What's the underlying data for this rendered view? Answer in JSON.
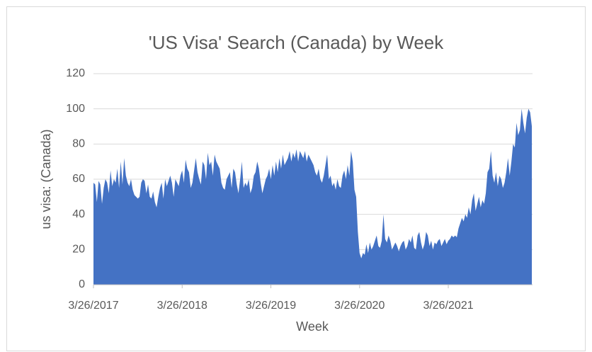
{
  "chart_data": {
    "type": "area",
    "title": "'US Visa' Search (Canada) by Week",
    "x_label": "Week",
    "y_label": "us visa: (Canada)",
    "ylim": [
      0,
      120
    ],
    "yticks": [
      0,
      20,
      40,
      60,
      80,
      100,
      120
    ],
    "grid": true,
    "categories": [
      "3/26/2017",
      null,
      null,
      null,
      null,
      null,
      null,
      null,
      null,
      null,
      null,
      null,
      null,
      null,
      null,
      null,
      null,
      null,
      null,
      null,
      null,
      null,
      null,
      null,
      null,
      null,
      null,
      null,
      null,
      null,
      null,
      null,
      null,
      null,
      null,
      null,
      null,
      null,
      null,
      null,
      null,
      null,
      null,
      null,
      null,
      null,
      null,
      null,
      null,
      null,
      null,
      null,
      "3/26/2018",
      null,
      null,
      null,
      null,
      null,
      null,
      null,
      null,
      null,
      null,
      null,
      null,
      null,
      null,
      null,
      null,
      null,
      null,
      null,
      null,
      null,
      null,
      null,
      null,
      null,
      null,
      null,
      null,
      null,
      null,
      null,
      null,
      null,
      null,
      null,
      null,
      null,
      null,
      null,
      null,
      null,
      null,
      null,
      null,
      null,
      null,
      null,
      null,
      null,
      null,
      null,
      "3/26/2019",
      null,
      null,
      null,
      null,
      null,
      null,
      null,
      null,
      null,
      null,
      null,
      null,
      null,
      null,
      null,
      null,
      null,
      null,
      null,
      null,
      null,
      null,
      null,
      null,
      null,
      null,
      null,
      null,
      null,
      null,
      null,
      null,
      null,
      null,
      null,
      null,
      null,
      null,
      null,
      null,
      null,
      null,
      null,
      null,
      null,
      null,
      null,
      null,
      null,
      null,
      null,
      "3/26/2020",
      null,
      null,
      null,
      null,
      null,
      null,
      null,
      null,
      null,
      null,
      null,
      null,
      null,
      null,
      null,
      null,
      null,
      null,
      null,
      null,
      null,
      null,
      null,
      null,
      null,
      null,
      null,
      null,
      null,
      null,
      null,
      null,
      null,
      null,
      null,
      null,
      null,
      null,
      null,
      null,
      null,
      null,
      null,
      null,
      null,
      null,
      null,
      null,
      null,
      null,
      null,
      "3/26/2021",
      null,
      null,
      null,
      null,
      null,
      null,
      null,
      null,
      null,
      null,
      null,
      null,
      null,
      null,
      null,
      null,
      null,
      null,
      null,
      null,
      null,
      null,
      null,
      null,
      null,
      null,
      null,
      null,
      null,
      null,
      null,
      null,
      null,
      null,
      null,
      null,
      null,
      null,
      null,
      null,
      null,
      null,
      null,
      null,
      null,
      null,
      null,
      null,
      null
    ],
    "series": [
      {
        "name": "us visa: (Canada)",
        "color": "#4472c4",
        "values": [
          58,
          57,
          47,
          59,
          57,
          46,
          55,
          60,
          58,
          52,
          65,
          56,
          60,
          58,
          66,
          55,
          70,
          57,
          72,
          62,
          58,
          56,
          60,
          54,
          51,
          50,
          49,
          50,
          58,
          60,
          59,
          52,
          57,
          50,
          49,
          53,
          47,
          44,
          50,
          55,
          58,
          49,
          60,
          56,
          59,
          62,
          58,
          50,
          60,
          58,
          56,
          62,
          65,
          58,
          71,
          66,
          64,
          55,
          58,
          65,
          72,
          64,
          60,
          57,
          70,
          68,
          60,
          75,
          68,
          70,
          62,
          74,
          70,
          68,
          66,
          58,
          55,
          54,
          60,
          62,
          64,
          55,
          66,
          64,
          57,
          52,
          60,
          70,
          55,
          58,
          56,
          60,
          52,
          55,
          62,
          64,
          70,
          66,
          58,
          52,
          56,
          60,
          62,
          66,
          60,
          68,
          62,
          70,
          64,
          72,
          66,
          74,
          68,
          70,
          72,
          76,
          70,
          75,
          72,
          77,
          70,
          76,
          74,
          72,
          76,
          70,
          74,
          72,
          70,
          68,
          64,
          62,
          66,
          60,
          58,
          62,
          68,
          74,
          60,
          62,
          56,
          58,
          54,
          60,
          56,
          55,
          62,
          65,
          60,
          68,
          62,
          76,
          70,
          54,
          50,
          30,
          18,
          15,
          18,
          17,
          23,
          18,
          24,
          20,
          22,
          25,
          28,
          22,
          21,
          25,
          40,
          26,
          24,
          28,
          25,
          20,
          22,
          24,
          22,
          19,
          22,
          24,
          25,
          20,
          22,
          26,
          24,
          28,
          21,
          20,
          28,
          30,
          24,
          20,
          23,
          30,
          28,
          22,
          25,
          20,
          24,
          23,
          25,
          26,
          22,
          24,
          26,
          23,
          25,
          26,
          28,
          27,
          28,
          27,
          32,
          35,
          38,
          36,
          40,
          38,
          44,
          40,
          48,
          52,
          42,
          46,
          50,
          44,
          48,
          46,
          52,
          64,
          66,
          76,
          62,
          58,
          64,
          56,
          62,
          60,
          55,
          58,
          64,
          72,
          62,
          70,
          80,
          78,
          92,
          85,
          88,
          100,
          92,
          86,
          95,
          100,
          98,
          90
        ]
      }
    ]
  }
}
